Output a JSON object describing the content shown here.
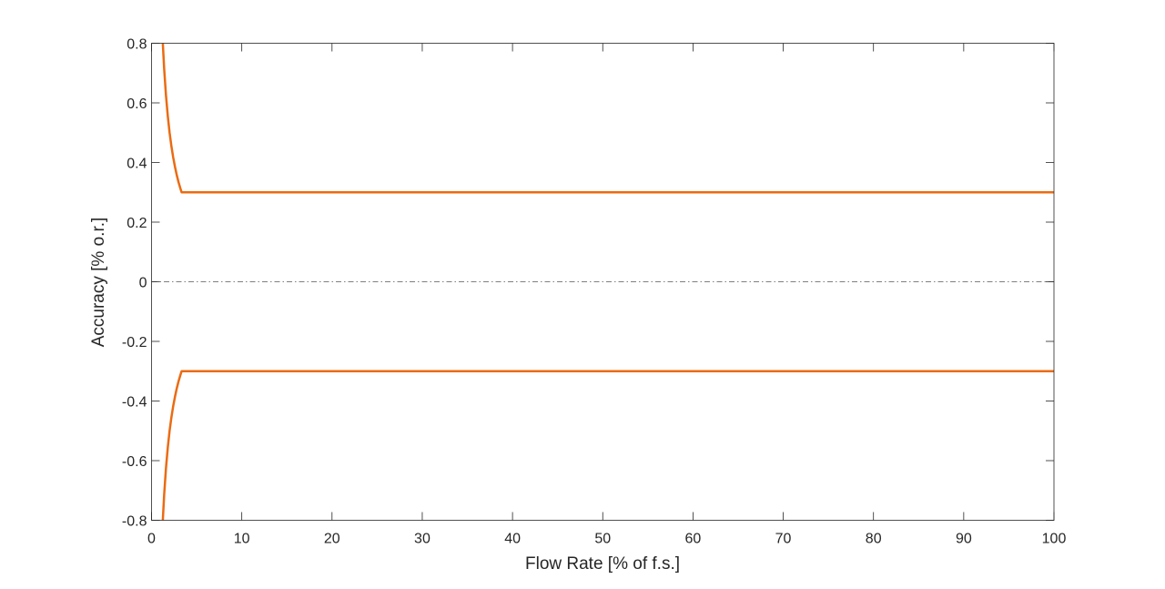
{
  "chart_data": {
    "type": "line",
    "title": "",
    "xlabel": "Flow Rate [% of f.s.]",
    "ylabel": "Accuracy [% o.r.]",
    "xlim": [
      0,
      100
    ],
    "ylim": [
      -0.8,
      0.8
    ],
    "xticks": [
      0,
      10,
      20,
      30,
      40,
      50,
      60,
      70,
      80,
      90,
      100
    ],
    "xtick_labels": [
      "0",
      "10",
      "20",
      "30",
      "40",
      "50",
      "60",
      "70",
      "80",
      "90",
      "100"
    ],
    "yticks": [
      -0.8,
      -0.6,
      -0.4,
      -0.2,
      0,
      0.2,
      0.4,
      0.6,
      0.8
    ],
    "ytick_labels": [
      "-0.8",
      "-0.6",
      "-0.4",
      "-0.2",
      "0",
      "0.2",
      "0.4",
      "0.6",
      "0.8"
    ],
    "grid": false,
    "series": [
      {
        "color": "#EB6B12",
        "x": [
          1.25,
          1.4,
          1.6,
          1.8,
          2.0,
          2.2,
          2.4,
          2.6,
          2.8,
          3.0,
          3.2,
          3.333,
          100
        ],
        "y": [
          0.8,
          0.714,
          0.625,
          0.556,
          0.5,
          0.455,
          0.417,
          0.385,
          0.357,
          0.333,
          0.3125,
          0.3,
          0.3
        ]
      },
      {
        "color": "#EB6B12",
        "x": [
          1.25,
          1.4,
          1.6,
          1.8,
          2.0,
          2.2,
          2.4,
          2.6,
          2.8,
          3.0,
          3.2,
          3.333,
          100
        ],
        "y": [
          -0.8,
          -0.714,
          -0.625,
          -0.556,
          -0.5,
          -0.455,
          -0.417,
          -0.385,
          -0.357,
          -0.333,
          -0.3125,
          -0.3,
          -0.3
        ]
      },
      {
        "color": "#808080",
        "style": "dash-dot",
        "x": [
          0,
          100
        ],
        "y": [
          0,
          0
        ]
      }
    ]
  }
}
